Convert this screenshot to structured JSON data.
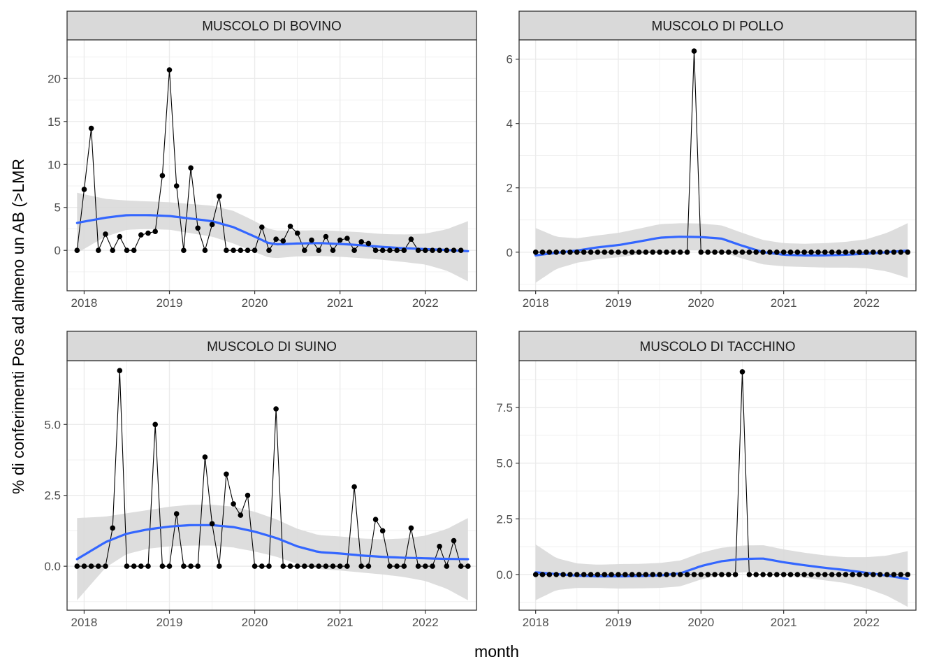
{
  "figure": {
    "xlabel": "month",
    "ylabel": "% di conferimenti Pos ad almeno un AB (>LMR"
  },
  "colors": {
    "points": "#000000",
    "line": "#000000",
    "smooth": "#3366FF",
    "ribbon": "#d9d9d9",
    "strip_fill": "#d9d9d9",
    "grid": "#ebebeb",
    "border": "#333333"
  },
  "chart_data": [
    {
      "type": "line",
      "title": "MUSCOLO DI BOVINO",
      "xlim": [
        2017.8,
        2022.6
      ],
      "ylim": [
        -4.7,
        24.5
      ],
      "xticks": [
        2018,
        2019,
        2020,
        2021,
        2022
      ],
      "xtick_labels": [
        "2018",
        "2019",
        "2020",
        "2021",
        "2022"
      ],
      "yticks": [
        0,
        5,
        10,
        15,
        20
      ],
      "ytick_labels": [
        "0",
        "5",
        "10",
        "15",
        "20"
      ],
      "x_start": 2017.917,
      "x_step": 0.0833333,
      "values": [
        0,
        7.1,
        14.2,
        0,
        1.9,
        0,
        1.6,
        0,
        0,
        1.8,
        2.0,
        2.2,
        8.7,
        21.0,
        7.5,
        0,
        9.6,
        2.6,
        0,
        3.0,
        6.3,
        0,
        0,
        0,
        0,
        0,
        2.7,
        0,
        1.3,
        1.1,
        2.8,
        2.0,
        0,
        1.2,
        0,
        1.6,
        0,
        1.2,
        1.4,
        0,
        1.0,
        0.8,
        0,
        0,
        0,
        0,
        0,
        1.3,
        0,
        0,
        0,
        0,
        0,
        0,
        0
      ],
      "smooth": [
        [
          2017.917,
          3.2
        ],
        [
          2018.25,
          3.8
        ],
        [
          2018.5,
          4.1
        ],
        [
          2018.75,
          4.1
        ],
        [
          2019.0,
          4.0
        ],
        [
          2019.25,
          3.7
        ],
        [
          2019.5,
          3.4
        ],
        [
          2019.75,
          2.7
        ],
        [
          2020.0,
          1.6
        ],
        [
          2020.15,
          0.9
        ],
        [
          2020.25,
          0.7
        ],
        [
          2020.5,
          0.8
        ],
        [
          2020.75,
          0.85
        ],
        [
          2021.0,
          0.75
        ],
        [
          2021.25,
          0.6
        ],
        [
          2021.5,
          0.4
        ],
        [
          2021.75,
          0.25
        ],
        [
          2022.0,
          0.15
        ],
        [
          2022.25,
          0.05
        ],
        [
          2022.5,
          -0.1
        ]
      ],
      "ribbon_half_width": [
        [
          2017.917,
          3.5
        ],
        [
          2018.25,
          2.2
        ],
        [
          2018.5,
          1.7
        ],
        [
          2018.75,
          1.6
        ],
        [
          2019.0,
          1.6
        ],
        [
          2019.25,
          1.7
        ],
        [
          2019.5,
          1.8
        ],
        [
          2019.75,
          1.9
        ],
        [
          2020.0,
          1.8
        ],
        [
          2020.25,
          1.6
        ],
        [
          2020.5,
          1.5
        ],
        [
          2020.75,
          1.5
        ],
        [
          2021.0,
          1.5
        ],
        [
          2021.25,
          1.5
        ],
        [
          2021.5,
          1.5
        ],
        [
          2021.75,
          1.6
        ],
        [
          2022.0,
          1.8
        ],
        [
          2022.25,
          2.4
        ],
        [
          2022.5,
          3.5
        ]
      ]
    },
    {
      "type": "line",
      "title": "MUSCOLO DI POLLO",
      "xlim": [
        2017.8,
        2022.6
      ],
      "ylim": [
        -1.2,
        6.6
      ],
      "xticks": [
        2018,
        2019,
        2020,
        2021,
        2022
      ],
      "xtick_labels": [
        "2018",
        "2019",
        "2020",
        "2021",
        "2022"
      ],
      "yticks": [
        0,
        2,
        4,
        6
      ],
      "ytick_labels": [
        "0",
        "2",
        "4",
        "6"
      ],
      "x_start": 2018.0,
      "x_step": 0.0833333,
      "values": [
        0,
        0,
        0,
        0,
        0,
        0,
        0,
        0,
        0,
        0,
        0,
        0,
        0,
        0,
        0,
        0,
        0,
        0,
        0,
        0,
        0,
        0,
        0,
        6.25,
        0,
        0,
        0,
        0,
        0,
        0,
        0,
        0,
        0,
        0,
        0,
        0,
        0,
        0,
        0,
        0,
        0,
        0,
        0,
        0,
        0,
        0,
        0,
        0,
        0,
        0,
        0,
        0,
        0,
        0,
        0
      ],
      "smooth": [
        [
          2018.0,
          -0.1
        ],
        [
          2018.25,
          -0.02
        ],
        [
          2018.5,
          0.05
        ],
        [
          2018.75,
          0.15
        ],
        [
          2019.0,
          0.22
        ],
        [
          2019.25,
          0.33
        ],
        [
          2019.5,
          0.45
        ],
        [
          2019.75,
          0.48
        ],
        [
          2020.0,
          0.47
        ],
        [
          2020.25,
          0.42
        ],
        [
          2020.5,
          0.2
        ],
        [
          2020.75,
          0.0
        ],
        [
          2021.0,
          -0.08
        ],
        [
          2021.25,
          -0.1
        ],
        [
          2021.5,
          -0.1
        ],
        [
          2021.75,
          -0.08
        ],
        [
          2022.0,
          -0.05
        ],
        [
          2022.25,
          0.0
        ],
        [
          2022.5,
          0.05
        ]
      ],
      "ribbon_half_width": [
        [
          2018.0,
          0.85
        ],
        [
          2018.25,
          0.5
        ],
        [
          2018.5,
          0.38
        ],
        [
          2018.75,
          0.37
        ],
        [
          2019.0,
          0.38
        ],
        [
          2019.25,
          0.4
        ],
        [
          2019.5,
          0.42
        ],
        [
          2019.75,
          0.42
        ],
        [
          2020.0,
          0.42
        ],
        [
          2020.25,
          0.41
        ],
        [
          2020.5,
          0.4
        ],
        [
          2020.75,
          0.38
        ],
        [
          2021.0,
          0.36
        ],
        [
          2021.25,
          0.36
        ],
        [
          2021.5,
          0.38
        ],
        [
          2021.75,
          0.4
        ],
        [
          2022.0,
          0.45
        ],
        [
          2022.25,
          0.6
        ],
        [
          2022.5,
          0.85
        ]
      ]
    },
    {
      "type": "line",
      "title": "MUSCOLO DI SUINO",
      "xlim": [
        2017.8,
        2022.6
      ],
      "ylim": [
        -1.55,
        7.25
      ],
      "xticks": [
        2018,
        2019,
        2020,
        2021,
        2022
      ],
      "xtick_labels": [
        "2018",
        "2019",
        "2020",
        "2021",
        "2022"
      ],
      "yticks": [
        0,
        2.5,
        5,
        7.5
      ],
      "ytick_labels": [
        "0.0",
        "2.5",
        "5.0",
        ""
      ],
      "x_start": 2017.917,
      "x_step": 0.0833333,
      "values": [
        0,
        0,
        0,
        0,
        0,
        1.35,
        6.9,
        0,
        0,
        0,
        0,
        5.0,
        0,
        0,
        1.85,
        0,
        0,
        0,
        3.85,
        1.5,
        0,
        3.25,
        2.2,
        1.8,
        2.5,
        0,
        0,
        0,
        5.55,
        0,
        0,
        0,
        0,
        0,
        0,
        0,
        0,
        0,
        0,
        2.8,
        0,
        0,
        1.65,
        1.25,
        0,
        0,
        0,
        1.35,
        0,
        0,
        0,
        0.7,
        0,
        0.9,
        0,
        0
      ],
      "smooth": [
        [
          2017.917,
          0.25
        ],
        [
          2018.25,
          0.85
        ],
        [
          2018.5,
          1.15
        ],
        [
          2018.75,
          1.3
        ],
        [
          2019.0,
          1.4
        ],
        [
          2019.25,
          1.45
        ],
        [
          2019.5,
          1.45
        ],
        [
          2019.75,
          1.38
        ],
        [
          2020.0,
          1.22
        ],
        [
          2020.25,
          1.0
        ],
        [
          2020.5,
          0.7
        ],
        [
          2020.75,
          0.5
        ],
        [
          2021.0,
          0.45
        ],
        [
          2021.25,
          0.38
        ],
        [
          2021.5,
          0.33
        ],
        [
          2021.75,
          0.3
        ],
        [
          2022.0,
          0.28
        ],
        [
          2022.25,
          0.26
        ],
        [
          2022.5,
          0.25
        ]
      ],
      "ribbon_half_width": [
        [
          2017.917,
          1.45
        ],
        [
          2018.25,
          0.9
        ],
        [
          2018.5,
          0.72
        ],
        [
          2018.75,
          0.68
        ],
        [
          2019.0,
          0.7
        ],
        [
          2019.25,
          0.72
        ],
        [
          2019.5,
          0.72
        ],
        [
          2019.75,
          0.72
        ],
        [
          2020.0,
          0.7
        ],
        [
          2020.25,
          0.66
        ],
        [
          2020.5,
          0.62
        ],
        [
          2020.75,
          0.6
        ],
        [
          2021.0,
          0.6
        ],
        [
          2021.25,
          0.6
        ],
        [
          2021.5,
          0.62
        ],
        [
          2021.75,
          0.68
        ],
        [
          2022.0,
          0.8
        ],
        [
          2022.25,
          1.05
        ],
        [
          2022.5,
          1.45
        ]
      ]
    },
    {
      "type": "line",
      "title": "MUSCOLO DI TACCHINO",
      "xlim": [
        2017.8,
        2022.6
      ],
      "ylim": [
        -1.6,
        9.6
      ],
      "xticks": [
        2018,
        2019,
        2020,
        2021,
        2022
      ],
      "xtick_labels": [
        "2018",
        "2019",
        "2020",
        "2021",
        "2022"
      ],
      "yticks": [
        0,
        2.5,
        5,
        7.5
      ],
      "ytick_labels": [
        "0.0",
        "2.5",
        "5.0",
        "7.5"
      ],
      "x_start": 2018.0,
      "x_step": 0.0833333,
      "values": [
        0,
        0,
        0,
        0,
        0,
        0,
        0,
        0,
        0,
        0,
        0,
        0,
        0,
        0,
        0,
        0,
        0,
        0,
        0,
        0,
        0,
        0,
        0,
        0,
        0,
        0,
        0,
        0,
        0,
        0,
        9.1,
        0,
        0,
        0,
        0,
        0,
        0,
        0,
        0,
        0,
        0,
        0,
        0,
        0,
        0,
        0,
        0,
        0,
        0,
        0,
        0,
        0,
        0,
        0,
        0
      ],
      "smooth": [
        [
          2018.0,
          0.1
        ],
        [
          2018.25,
          0.02
        ],
        [
          2018.5,
          -0.05
        ],
        [
          2018.75,
          -0.08
        ],
        [
          2019.0,
          -0.08
        ],
        [
          2019.25,
          -0.07
        ],
        [
          2019.5,
          -0.04
        ],
        [
          2019.75,
          0.05
        ],
        [
          2020.0,
          0.38
        ],
        [
          2020.25,
          0.6
        ],
        [
          2020.5,
          0.7
        ],
        [
          2020.75,
          0.72
        ],
        [
          2021.0,
          0.55
        ],
        [
          2021.25,
          0.42
        ],
        [
          2021.5,
          0.3
        ],
        [
          2021.75,
          0.2
        ],
        [
          2022.0,
          0.08
        ],
        [
          2022.25,
          -0.05
        ],
        [
          2022.5,
          -0.2
        ]
      ],
      "ribbon_half_width": [
        [
          2018.0,
          1.25
        ],
        [
          2018.25,
          0.72
        ],
        [
          2018.5,
          0.55
        ],
        [
          2018.75,
          0.52
        ],
        [
          2019.0,
          0.55
        ],
        [
          2019.25,
          0.55
        ],
        [
          2019.5,
          0.56
        ],
        [
          2019.75,
          0.58
        ],
        [
          2020.0,
          0.6
        ],
        [
          2020.25,
          0.6
        ],
        [
          2020.5,
          0.6
        ],
        [
          2020.75,
          0.6
        ],
        [
          2021.0,
          0.58
        ],
        [
          2021.25,
          0.56
        ],
        [
          2021.5,
          0.56
        ],
        [
          2021.75,
          0.58
        ],
        [
          2022.0,
          0.7
        ],
        [
          2022.25,
          0.9
        ],
        [
          2022.5,
          1.25
        ]
      ]
    }
  ]
}
